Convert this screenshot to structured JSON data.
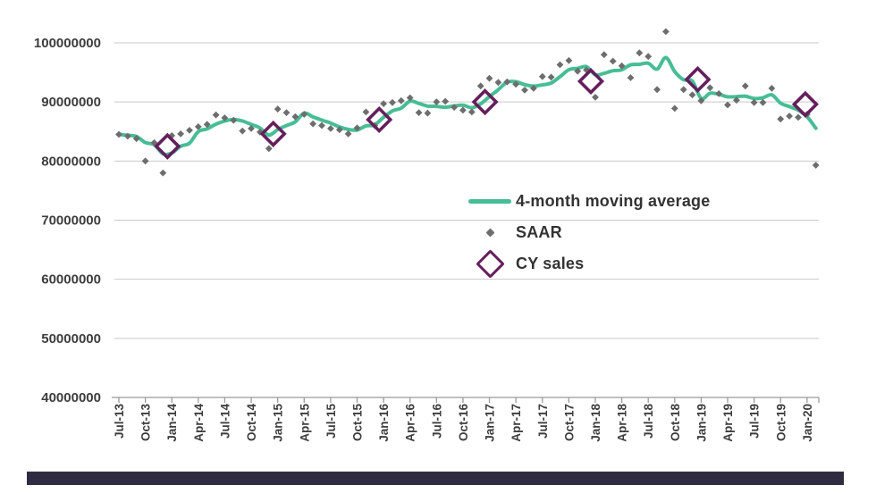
{
  "page": {
    "background": "#FFFFFF",
    "footer_bar_color": "#2F2C42"
  },
  "chart_data": {
    "type": "line",
    "title": "",
    "grid": "horizontal",
    "legend_position": "overlay-center-right",
    "gridline_color": "#C9C9C9",
    "axis_color": "#9A9A9A",
    "label_color": "#3D3D3D",
    "y_axis": {
      "min": 40000000,
      "max": 100000000,
      "step": 10000000,
      "tick_labels": [
        "100000000",
        "90000000",
        "80000000",
        "70000000",
        "60000000",
        "50000000",
        "40000000"
      ]
    },
    "x_axis": {
      "start_month": "Jul-13",
      "months_total": 80,
      "tick_every_months": 3,
      "tick_labels": [
        "Jul-13",
        "Oct-13",
        "Jan-14",
        "Apr-14",
        "Jul-14",
        "Oct-14",
        "Jan-15",
        "Apr-15",
        "Jul-15",
        "Oct-15",
        "Jan-16",
        "Apr-16",
        "Jul-16",
        "Oct-16",
        "Jan-17",
        "Apr-17",
        "Jul-17",
        "Oct-17",
        "Jan-18",
        "Apr-18",
        "Jul-18",
        "Oct-18",
        "Jan-19",
        "Apr-19",
        "Jul-19",
        "Oct-19",
        "Jan-20"
      ]
    },
    "series": [
      {
        "name": "4-month moving average",
        "type": "line",
        "color": "#47BD96",
        "computed": "trailing mean of SAAR over 4 months (partial window at series start)"
      },
      {
        "name": "SAAR",
        "type": "scatter",
        "marker": "diamond",
        "color": "#6D6D6D",
        "start_month": "Jul-13",
        "values": [
          84500000,
          84200000,
          83800000,
          80000000,
          83100000,
          78000000,
          84300000,
          84600000,
          85200000,
          85800000,
          86200000,
          87800000,
          87300000,
          86900000,
          85100000,
          85500000,
          84900000,
          82100000,
          88800000,
          88200000,
          87500000,
          87900000,
          86300000,
          86000000,
          85500000,
          85300000,
          84600000,
          85600000,
          88300000,
          86000000,
          89700000,
          89900000,
          90200000,
          90700000,
          88200000,
          88100000,
          90000000,
          90100000,
          89100000,
          88600000,
          88300000,
          92700000,
          94000000,
          93300000,
          93400000,
          93000000,
          92000000,
          92300000,
          94300000,
          94200000,
          96300000,
          97000000,
          95200000,
          95400000,
          90800000,
          98000000,
          96900000,
          96100000,
          94100000,
          98300000,
          97700000,
          92100000,
          101900000,
          88900000,
          92100000,
          91200000,
          90200000,
          92400000,
          91400000,
          89500000,
          90300000,
          92700000,
          89900000,
          89900000,
          92300000,
          87100000,
          87600000,
          87400000,
          87900000,
          79300000
        ]
      },
      {
        "name": "CY sales",
        "type": "scatter",
        "marker": "diamond-outline",
        "color": "#651F5C",
        "points": [
          {
            "month_index": 5.5,
            "value": 82500000
          },
          {
            "month_index": 17.5,
            "value": 84600000
          },
          {
            "month_index": 29.5,
            "value": 87000000
          },
          {
            "month_index": 41.5,
            "value": 90000000
          },
          {
            "month_index": 53.5,
            "value": 93500000
          },
          {
            "month_index": 65.6,
            "value": 93800000
          },
          {
            "month_index": 77.8,
            "value": 89600000
          }
        ]
      }
    ]
  }
}
